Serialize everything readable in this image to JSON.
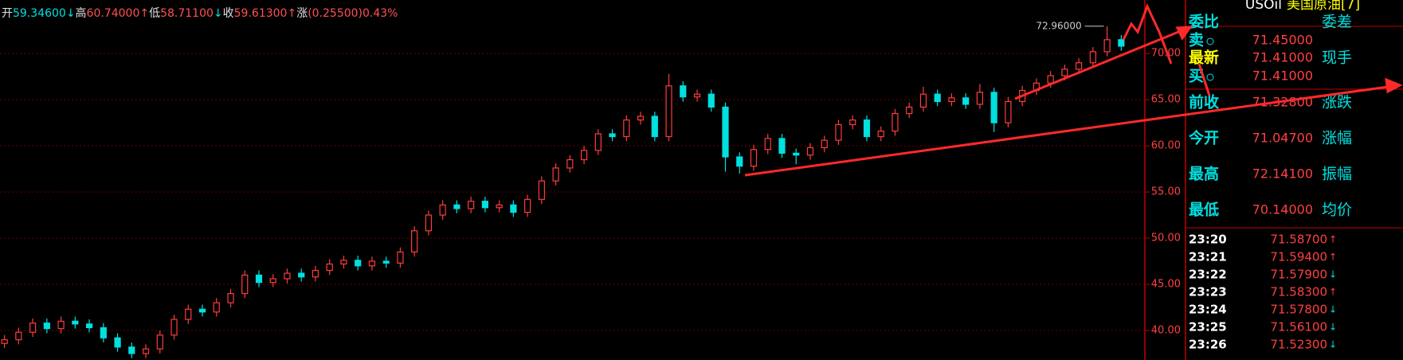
{
  "header": {
    "items": [
      {
        "label": "开",
        "value": "59.34600",
        "arrow": "↓"
      },
      {
        "label": "高",
        "value": "60.74000",
        "arrow": "↑"
      },
      {
        "label": "低",
        "value": "58.71100",
        "arrow": "↓"
      },
      {
        "label": "收",
        "value": "59.61300",
        "arrow": "↑"
      },
      {
        "label": "涨",
        "value": "(0.25500)0.43%"
      }
    ]
  },
  "chart_data": {
    "type": "candlestick",
    "open": [
      38.6,
      39.0,
      39.8,
      40.8,
      40.2,
      41.0,
      40.7,
      40.3,
      39.2,
      38.2,
      37.5,
      38.0,
      39.5,
      41.2,
      42.3,
      42.0,
      43.0,
      44.0,
      46.0,
      45.2,
      45.6,
      46.2,
      45.8,
      46.5,
      47.2,
      47.6,
      47.0,
      47.5,
      47.3,
      48.5,
      50.8,
      52.5,
      53.6,
      53.2,
      54.0,
      53.3,
      53.6,
      52.8,
      54.2,
      56.2,
      57.6,
      58.5,
      59.5,
      61.3,
      61.0,
      62.8,
      63.2,
      61.0,
      66.5,
      65.3,
      65.6,
      64.2,
      58.8,
      57.8,
      59.6,
      60.8,
      59.2,
      59.0,
      59.8,
      60.6,
      62.3,
      62.8,
      61.0,
      61.6,
      63.5,
      64.2,
      65.6,
      64.8,
      65.2,
      64.5,
      65.8,
      62.5,
      64.8,
      66.0,
      66.8,
      67.6,
      68.3,
      69.0,
      70.2,
      71.5
    ],
    "high": [
      39.5,
      40.3,
      41.3,
      41.3,
      41.5,
      41.5,
      41.2,
      40.8,
      39.7,
      38.7,
      38.5,
      40.0,
      41.7,
      42.8,
      42.8,
      43.5,
      44.5,
      46.5,
      46.5,
      46.1,
      46.7,
      46.7,
      47.0,
      47.7,
      48.1,
      48.1,
      48.0,
      48.0,
      49.0,
      51.3,
      53.0,
      54.1,
      54.1,
      54.5,
      54.5,
      54.1,
      54.1,
      54.7,
      56.7,
      58.1,
      59.0,
      60.0,
      61.8,
      61.8,
      63.3,
      63.7,
      63.7,
      67.8,
      67.0,
      66.1,
      66.1,
      64.7,
      59.3,
      60.1,
      61.3,
      61.3,
      59.7,
      60.3,
      61.1,
      62.8,
      63.3,
      63.3,
      62.1,
      64.0,
      64.7,
      66.4,
      66.1,
      65.7,
      65.7,
      66.7,
      66.3,
      65.3,
      66.5,
      67.3,
      68.1,
      68.8,
      69.5,
      70.7,
      72.96,
      72.0
    ],
    "low": [
      38.1,
      38.5,
      39.3,
      39.7,
      39.7,
      40.2,
      39.8,
      38.7,
      37.7,
      37.0,
      37.0,
      37.5,
      39.0,
      40.7,
      41.5,
      41.5,
      42.5,
      43.5,
      44.7,
      44.7,
      45.1,
      45.3,
      45.3,
      46.0,
      46.7,
      46.5,
      46.5,
      46.8,
      46.8,
      48.0,
      50.3,
      52.0,
      52.7,
      52.7,
      52.8,
      52.8,
      52.3,
      52.3,
      53.7,
      55.7,
      57.1,
      58.0,
      59.0,
      60.5,
      60.5,
      62.3,
      60.5,
      60.5,
      64.8,
      64.8,
      63.7,
      57.2,
      57.0,
      57.3,
      59.1,
      58.7,
      58.0,
      58.5,
      59.3,
      60.1,
      61.8,
      60.5,
      60.5,
      61.1,
      63.0,
      63.7,
      64.3,
      64.3,
      64.0,
      64.0,
      61.5,
      62.0,
      64.3,
      65.5,
      66.3,
      67.1,
      67.8,
      68.5,
      69.7,
      70.3
    ],
    "close": [
      39.0,
      39.8,
      40.8,
      40.2,
      41.0,
      40.7,
      40.3,
      39.2,
      38.2,
      37.5,
      38.0,
      39.5,
      41.2,
      42.3,
      42.0,
      43.0,
      44.0,
      46.0,
      45.2,
      45.6,
      46.2,
      45.8,
      46.5,
      47.2,
      47.6,
      47.0,
      47.5,
      47.3,
      48.5,
      50.8,
      52.5,
      53.6,
      53.2,
      54.0,
      53.3,
      53.6,
      52.8,
      54.2,
      56.2,
      57.6,
      58.5,
      59.5,
      61.3,
      61.0,
      62.8,
      63.2,
      61.0,
      66.5,
      65.3,
      65.6,
      64.2,
      58.8,
      57.8,
      59.6,
      60.8,
      59.2,
      59.0,
      59.8,
      60.6,
      62.3,
      62.8,
      61.0,
      61.6,
      63.5,
      64.2,
      65.6,
      64.8,
      65.2,
      64.5,
      65.8,
      62.5,
      64.8,
      66.0,
      66.8,
      67.6,
      68.3,
      69.0,
      70.2,
      71.5,
      70.8
    ],
    "up_color": "#ff3c3c",
    "down_color": "#00e0e0",
    "ylim": [
      36.8,
      75.8
    ],
    "yticks": [
      {
        "value": 40,
        "label": "40.00"
      },
      {
        "value": 45,
        "label": "45.00"
      },
      {
        "value": 50,
        "label": "50.00"
      },
      {
        "value": 55,
        "label": "55.00"
      },
      {
        "value": 60,
        "label": "60.00"
      },
      {
        "value": 65,
        "label": "65.00"
      },
      {
        "value": 70,
        "label": "70.00"
      }
    ],
    "grid": true,
    "annotations": [
      {
        "text": "72.96000",
        "value": 72.96
      }
    ]
  },
  "panel": {
    "symbol": "USOil",
    "name": "美国原油[7]",
    "rows": [
      {
        "label": "委比",
        "right": "委差"
      },
      {
        "label": "卖",
        "value": "71.45000"
      },
      {
        "label": "最新",
        "value": "71.41000",
        "right": "现手"
      },
      {
        "label": "买",
        "value": "71.41000"
      },
      {
        "label": "前收",
        "value": "71.32800",
        "right": "涨跌"
      },
      {
        "label": "今开",
        "value": "71.04700",
        "right": "涨幅"
      },
      {
        "label": "最高",
        "value": "72.14100",
        "right": "振幅"
      },
      {
        "label": "最低",
        "value": "70.14000",
        "right": "均价"
      }
    ],
    "ticks": [
      {
        "time": "23:20",
        "price": "71.58700",
        "dir": "↑"
      },
      {
        "time": "23:21",
        "price": "71.59400",
        "dir": "↑"
      },
      {
        "time": "23:22",
        "price": "71.57900",
        "dir": "↓"
      },
      {
        "time": "23:23",
        "price": "71.58300",
        "dir": "↑"
      },
      {
        "time": "23:24",
        "price": "71.57800",
        "dir": "↓"
      },
      {
        "time": "23:25",
        "price": "71.56100",
        "dir": "↓"
      },
      {
        "time": "23:26",
        "price": "71.52300",
        "dir": "↓"
      }
    ]
  }
}
